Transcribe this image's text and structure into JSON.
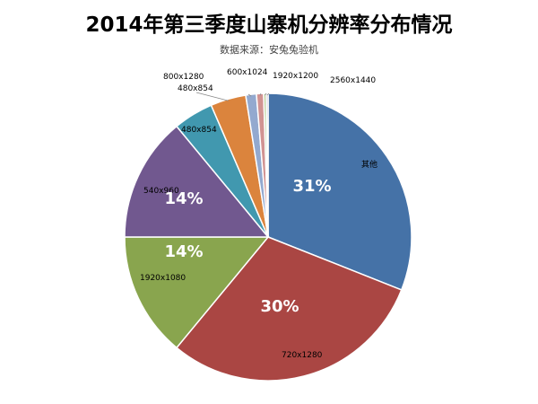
{
  "chart_data": {
    "type": "pie",
    "title": "2014年第三季度山寨机分辨率分布情况",
    "subtitle": "数据来源：安兔兔验机",
    "slices": [
      {
        "label": "其他",
        "value": 31,
        "percent_label": "31%",
        "color": "#4572A7"
      },
      {
        "label": "720x1280",
        "value": 30,
        "percent_label": "30%",
        "color": "#AA4643"
      },
      {
        "label": "1920x1080",
        "value": 14,
        "percent_label": "14%",
        "color": "#89A54E"
      },
      {
        "label": "540x960",
        "value": 14,
        "percent_label": "14%",
        "color": "#71588F"
      },
      {
        "label": "480x854",
        "value": 4.5,
        "percent_label": "",
        "color": "#4198AF"
      },
      {
        "label": "480x854",
        "value": 4,
        "percent_label": "",
        "color": "#DB843D"
      },
      {
        "label": "800x1280",
        "value": 1.2,
        "percent_label": "",
        "color": "#93A9CF"
      },
      {
        "label": "600x1024",
        "value": 0.8,
        "percent_label": "",
        "color": "#D19392"
      },
      {
        "label": "1920x1200",
        "value": 0.3,
        "percent_label": "",
        "color": "#B9CD96"
      },
      {
        "label": "2560x1440",
        "value": 0.2,
        "percent_label": "",
        "color": "#A99BBD"
      }
    ],
    "start_angle_deg": 0,
    "direction": "clockwise"
  }
}
